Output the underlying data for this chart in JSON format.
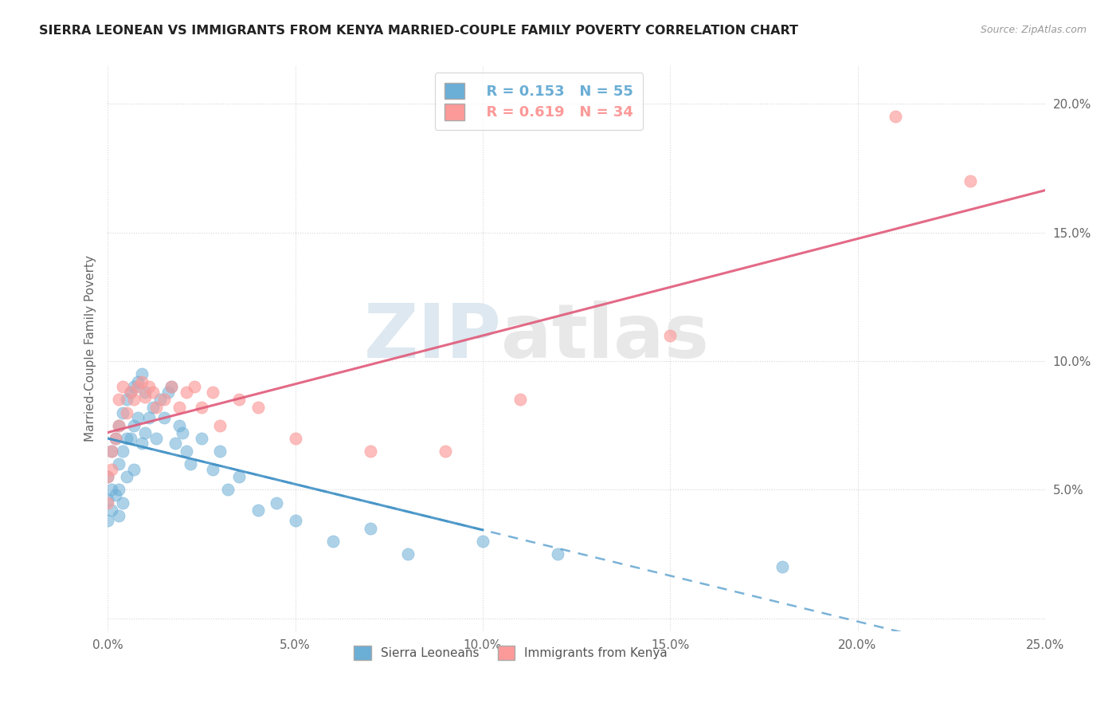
{
  "title": "SIERRA LEONEAN VS IMMIGRANTS FROM KENYA MARRIED-COUPLE FAMILY POVERTY CORRELATION CHART",
  "source": "Source: ZipAtlas.com",
  "ylabel": "Married-Couple Family Poverty",
  "xlim": [
    0.0,
    0.25
  ],
  "ylim": [
    -0.005,
    0.215
  ],
  "xticks": [
    0.0,
    0.05,
    0.1,
    0.15,
    0.2,
    0.25
  ],
  "xtick_labels": [
    "0.0%",
    "5.0%",
    "10.0%",
    "15.0%",
    "20.0%",
    "25.0%"
  ],
  "yticks": [
    0.0,
    0.05,
    0.1,
    0.15,
    0.2
  ],
  "ytick_labels": [
    "",
    "5.0%",
    "10.0%",
    "15.0%",
    "20.0%"
  ],
  "legend_r1": "R = 0.153",
  "legend_n1": "N = 55",
  "legend_r2": "R = 0.619",
  "legend_n2": "N = 34",
  "color_sl": "#6baed6",
  "color_kenya": "#fb9a99",
  "trendline_sl_color": "#4292c6",
  "trendline_kenya_color": "#e05a7a",
  "watermark_zip": "ZIP",
  "watermark_atlas": "atlas",
  "sierra_x": [
    0.0,
    0.0,
    0.0,
    0.001,
    0.001,
    0.001,
    0.002,
    0.002,
    0.003,
    0.003,
    0.003,
    0.003,
    0.004,
    0.004,
    0.004,
    0.005,
    0.005,
    0.005,
    0.006,
    0.006,
    0.007,
    0.007,
    0.007,
    0.008,
    0.008,
    0.009,
    0.009,
    0.01,
    0.01,
    0.011,
    0.012,
    0.013,
    0.014,
    0.015,
    0.016,
    0.017,
    0.018,
    0.019,
    0.02,
    0.021,
    0.022,
    0.025,
    0.028,
    0.03,
    0.032,
    0.035,
    0.04,
    0.045,
    0.05,
    0.06,
    0.07,
    0.08,
    0.1,
    0.12,
    0.18
  ],
  "sierra_y": [
    0.046,
    0.055,
    0.038,
    0.065,
    0.05,
    0.042,
    0.07,
    0.048,
    0.075,
    0.06,
    0.05,
    0.04,
    0.08,
    0.065,
    0.045,
    0.085,
    0.07,
    0.055,
    0.088,
    0.07,
    0.09,
    0.075,
    0.058,
    0.092,
    0.078,
    0.095,
    0.068,
    0.088,
    0.072,
    0.078,
    0.082,
    0.07,
    0.085,
    0.078,
    0.088,
    0.09,
    0.068,
    0.075,
    0.072,
    0.065,
    0.06,
    0.07,
    0.058,
    0.065,
    0.05,
    0.055,
    0.042,
    0.045,
    0.038,
    0.03,
    0.035,
    0.025,
    0.03,
    0.025,
    0.02
  ],
  "kenya_x": [
    0.0,
    0.0,
    0.001,
    0.001,
    0.002,
    0.003,
    0.003,
    0.004,
    0.005,
    0.006,
    0.007,
    0.008,
    0.009,
    0.01,
    0.011,
    0.012,
    0.013,
    0.015,
    0.017,
    0.019,
    0.021,
    0.023,
    0.025,
    0.028,
    0.03,
    0.035,
    0.04,
    0.05,
    0.07,
    0.09,
    0.11,
    0.15,
    0.21,
    0.23
  ],
  "kenya_y": [
    0.055,
    0.045,
    0.065,
    0.058,
    0.07,
    0.075,
    0.085,
    0.09,
    0.08,
    0.088,
    0.085,
    0.09,
    0.092,
    0.086,
    0.09,
    0.088,
    0.082,
    0.085,
    0.09,
    0.082,
    0.088,
    0.09,
    0.082,
    0.088,
    0.075,
    0.085,
    0.082,
    0.07,
    0.065,
    0.065,
    0.085,
    0.11,
    0.195,
    0.17
  ],
  "background_color": "#ffffff",
  "grid_color": "#d5d5d5"
}
